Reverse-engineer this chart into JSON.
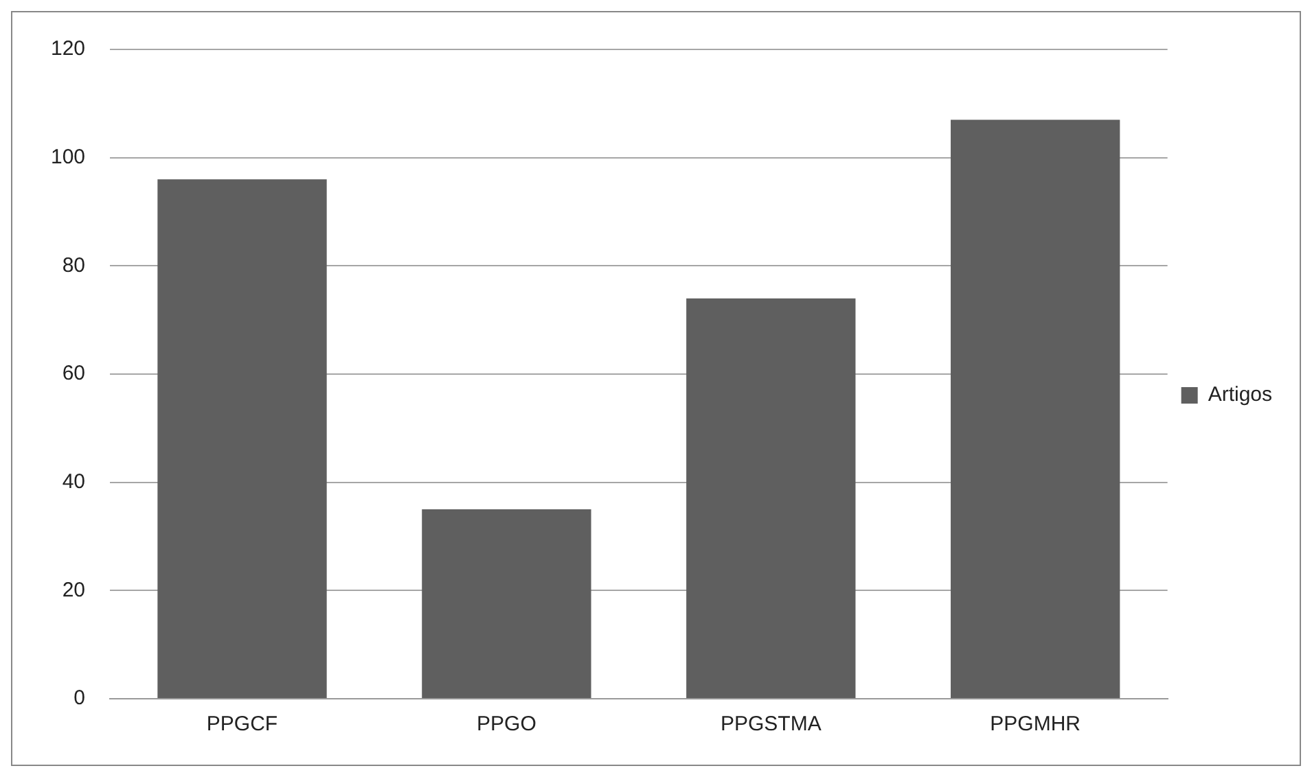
{
  "chart_data": {
    "type": "bar",
    "categories": [
      "PPGCF",
      "PPGO",
      "PPGSTMA",
      "PPGMHR"
    ],
    "series": [
      {
        "name": "Artigos",
        "color": "#5f5f5f",
        "values": [
          96,
          35,
          74,
          107
        ]
      }
    ],
    "ylim": [
      0,
      120
    ],
    "yticks": [
      0,
      20,
      40,
      60,
      80,
      100,
      120
    ],
    "grid": "y",
    "legend": "right"
  }
}
